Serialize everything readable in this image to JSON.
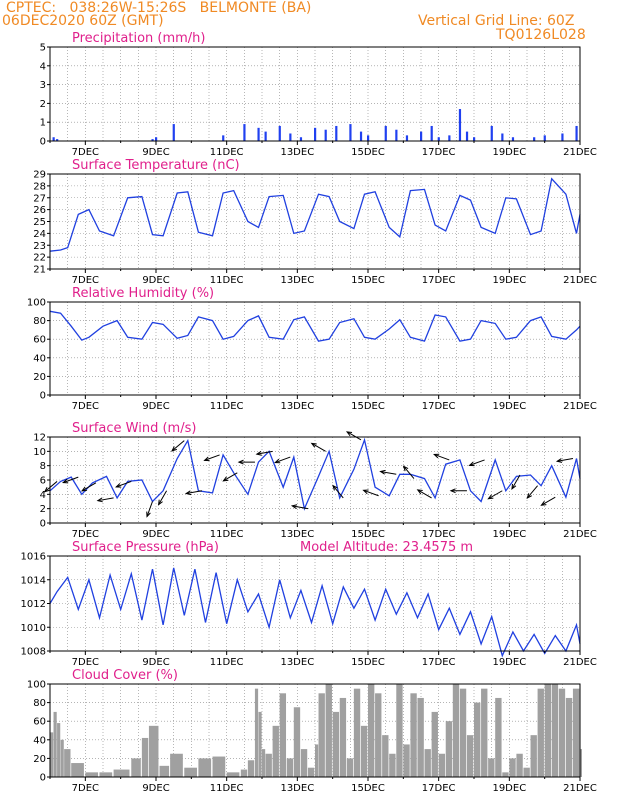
{
  "header": {
    "location_line": "CPTEC:   038:26W-15:26S   BELMONTE (BA)",
    "date_line": "06DEC2020 60Z (GMT)",
    "grid_line": "Vertical Grid Line: 60Z",
    "code_line": "TQ0126L028"
  },
  "colors": {
    "header": "#f08a24",
    "titles": "#e0208c",
    "line": "#2040e0",
    "precip": "#2040f0",
    "cloud": "#a0a0a0",
    "wind_arrow": "#000000"
  },
  "chart_data": [
    {
      "type": "bar",
      "title": "Precipitation (mm/h)",
      "ylim": [
        0,
        5
      ],
      "yticks": [
        0,
        1,
        2,
        3,
        4,
        5
      ],
      "x_range_days": [
        6,
        21
      ],
      "x_labels": [
        "7DEC",
        "9DEC",
        "11DEC",
        "13DEC",
        "15DEC",
        "17DEC",
        "19DEC",
        "21DEC"
      ],
      "grid": "dotted",
      "x": [
        6.1,
        6.2,
        8.9,
        9.0,
        9.5,
        10.9,
        11.5,
        11.9,
        12.1,
        12.5,
        12.8,
        13.1,
        13.5,
        13.8,
        14.1,
        14.5,
        14.8,
        15.0,
        15.5,
        15.8,
        16.1,
        16.5,
        16.8,
        17.0,
        17.3,
        17.6,
        17.8,
        18.0,
        18.5,
        18.8,
        19.1,
        19.7,
        20.0,
        20.5,
        20.9
      ],
      "values": [
        0.2,
        0.1,
        0.1,
        0.2,
        0.9,
        0.3,
        0.9,
        0.7,
        0.5,
        0.8,
        0.4,
        0.2,
        0.7,
        0.6,
        0.8,
        0.9,
        0.5,
        0.3,
        0.8,
        0.6,
        0.3,
        0.5,
        0.8,
        0.2,
        0.3,
        1.7,
        0.5,
        0.2,
        0.8,
        0.4,
        0.2,
        0.2,
        0.3,
        0.4,
        0.8
      ]
    },
    {
      "type": "line",
      "title": "Surface Temperature (nC)",
      "ylim": [
        21,
        29
      ],
      "yticks": [
        21,
        22,
        23,
        24,
        25,
        26,
        27,
        28,
        29
      ],
      "x_range_days": [
        6,
        21
      ],
      "x_labels": [
        "7DEC",
        "9DEC",
        "11DEC",
        "13DEC",
        "15DEC",
        "17DEC",
        "19DEC",
        "21DEC"
      ],
      "grid": "dotted",
      "x": [
        6.0,
        6.3,
        6.5,
        6.8,
        7.1,
        7.4,
        7.8,
        8.2,
        8.6,
        8.9,
        9.2,
        9.6,
        9.9,
        10.2,
        10.6,
        10.9,
        11.2,
        11.6,
        11.9,
        12.2,
        12.6,
        12.9,
        13.2,
        13.6,
        13.9,
        14.2,
        14.6,
        14.9,
        15.2,
        15.6,
        15.9,
        16.2,
        16.6,
        16.9,
        17.2,
        17.6,
        17.9,
        18.2,
        18.6,
        18.9,
        19.2,
        19.6,
        19.9,
        20.2,
        20.6,
        20.9,
        21.0
      ],
      "values": [
        22.5,
        22.6,
        22.8,
        25.6,
        26.0,
        24.2,
        23.8,
        27.0,
        27.1,
        23.9,
        23.8,
        27.4,
        27.5,
        24.1,
        23.8,
        27.4,
        27.6,
        25.0,
        24.5,
        27.1,
        27.2,
        24.0,
        24.2,
        27.3,
        27.1,
        25.0,
        24.4,
        27.3,
        27.5,
        24.5,
        23.7,
        27.6,
        27.7,
        24.7,
        24.2,
        27.2,
        26.8,
        24.5,
        24.0,
        27.0,
        26.9,
        23.9,
        24.2,
        28.6,
        27.3,
        24.0,
        25.6
      ]
    },
    {
      "type": "line",
      "title": "Relative Humidity (%)",
      "ylim": [
        0,
        100
      ],
      "yticks": [
        0,
        20,
        40,
        60,
        80,
        100
      ],
      "x_range_days": [
        6,
        21
      ],
      "x_labels": [
        "7DEC",
        "9DEC",
        "11DEC",
        "13DEC",
        "15DEC",
        "17DEC",
        "19DEC",
        "21DEC"
      ],
      "grid": "dotted",
      "x": [
        6.0,
        6.3,
        6.6,
        6.9,
        7.1,
        7.5,
        7.9,
        8.2,
        8.6,
        8.9,
        9.2,
        9.6,
        9.9,
        10.2,
        10.6,
        10.9,
        11.2,
        11.6,
        11.9,
        12.2,
        12.6,
        12.9,
        13.2,
        13.6,
        13.9,
        14.2,
        14.6,
        14.9,
        15.2,
        15.6,
        15.9,
        16.2,
        16.6,
        16.9,
        17.2,
        17.6,
        17.9,
        18.2,
        18.6,
        18.9,
        19.2,
        19.6,
        19.9,
        20.2,
        20.6,
        20.9,
        21.0
      ],
      "values": [
        90,
        88,
        74,
        59,
        62,
        74,
        80,
        62,
        60,
        78,
        76,
        61,
        64,
        84,
        80,
        60,
        63,
        80,
        85,
        62,
        60,
        81,
        84,
        58,
        60,
        78,
        82,
        62,
        60,
        71,
        81,
        62,
        58,
        86,
        84,
        58,
        60,
        80,
        77,
        60,
        62,
        80,
        84,
        63,
        60,
        70,
        74
      ]
    },
    {
      "type": "line",
      "title": "Surface Wind (m/s)",
      "ylim": [
        0,
        12
      ],
      "yticks": [
        0,
        2,
        4,
        6,
        8,
        10,
        12
      ],
      "x_range_days": [
        6,
        21
      ],
      "x_labels": [
        "7DEC",
        "9DEC",
        "11DEC",
        "13DEC",
        "15DEC",
        "17DEC",
        "19DEC",
        "21DEC"
      ],
      "grid": "dotted",
      "x": [
        6.0,
        6.3,
        6.6,
        6.9,
        7.2,
        7.6,
        7.9,
        8.2,
        8.6,
        8.9,
        9.2,
        9.6,
        9.9,
        10.2,
        10.6,
        10.9,
        11.2,
        11.6,
        11.9,
        12.2,
        12.6,
        12.9,
        13.2,
        13.6,
        13.9,
        14.2,
        14.6,
        14.9,
        15.2,
        15.6,
        15.9,
        16.2,
        16.6,
        16.9,
        17.2,
        17.6,
        17.9,
        18.2,
        18.6,
        18.9,
        19.2,
        19.6,
        19.9,
        20.2,
        20.6,
        20.9,
        21.0
      ],
      "values": [
        4.5,
        5.8,
        6.4,
        4.0,
        5.6,
        6.5,
        3.5,
        5.8,
        6.0,
        3.0,
        4.5,
        9.0,
        11.5,
        4.5,
        4.2,
        9.5,
        7.0,
        4.0,
        8.5,
        10.0,
        5.0,
        9.2,
        2.0,
        6.5,
        10.0,
        3.5,
        7.5,
        11.6,
        5.0,
        3.8,
        6.8,
        6.8,
        6.2,
        3.5,
        8.2,
        8.8,
        4.5,
        3.0,
        8.8,
        4.5,
        6.5,
        6.7,
        5.2,
        8.0,
        3.6,
        9.0,
        6.2
      ],
      "vectors": {
        "x": [
          6.2,
          6.8,
          7.3,
          7.8,
          8.3,
          8.9,
          9.3,
          9.8,
          10.3,
          10.8,
          11.3,
          11.8,
          12.3,
          12.8,
          13.3,
          13.8,
          14.3,
          14.8,
          15.3,
          15.8,
          16.3,
          16.8,
          17.3,
          17.8,
          18.3,
          18.8,
          19.3,
          19.8,
          20.3,
          20.8
        ],
        "dir": [
          230,
          250,
          240,
          260,
          250,
          200,
          210,
          230,
          260,
          250,
          240,
          270,
          260,
          250,
          280,
          300,
          320,
          300,
          290,
          280,
          320,
          300,
          290,
          270,
          250,
          240,
          210,
          220,
          240,
          260
        ]
      }
    },
    {
      "type": "line",
      "title": "Surface Pressure (hPa)",
      "annotation": "Model Altitude: 23.4575 m",
      "ylim": [
        1008,
        1016
      ],
      "yticks": [
        1008,
        1010,
        1012,
        1014,
        1016
      ],
      "x_range_days": [
        6,
        21
      ],
      "x_labels": [
        "7DEC",
        "9DEC",
        "11DEC",
        "13DEC",
        "15DEC",
        "17DEC",
        "19DEC",
        "21DEC"
      ],
      "grid": "dotted",
      "x": [
        6.0,
        6.2,
        6.5,
        6.8,
        7.1,
        7.4,
        7.7,
        8.0,
        8.3,
        8.6,
        8.9,
        9.2,
        9.5,
        9.8,
        10.1,
        10.4,
        10.7,
        11.0,
        11.3,
        11.6,
        11.9,
        12.2,
        12.5,
        12.8,
        13.1,
        13.4,
        13.7,
        14.0,
        14.3,
        14.6,
        14.9,
        15.2,
        15.5,
        15.8,
        16.1,
        16.4,
        16.7,
        17.0,
        17.3,
        17.6,
        17.9,
        18.2,
        18.5,
        18.8,
        19.1,
        19.4,
        19.7,
        20.0,
        20.3,
        20.6,
        20.9,
        21.0
      ],
      "values": [
        1012.0,
        1013.0,
        1014.2,
        1011.5,
        1014.0,
        1010.8,
        1014.4,
        1011.5,
        1014.5,
        1010.6,
        1014.9,
        1010.2,
        1015.0,
        1011.0,
        1014.9,
        1010.4,
        1014.6,
        1010.3,
        1014.0,
        1011.3,
        1012.8,
        1010.0,
        1014.0,
        1010.8,
        1013.1,
        1010.4,
        1013.5,
        1010.3,
        1013.4,
        1011.6,
        1013.2,
        1010.6,
        1013.2,
        1011.1,
        1012.9,
        1010.8,
        1012.8,
        1009.8,
        1011.6,
        1009.4,
        1011.3,
        1008.6,
        1010.9,
        1007.6,
        1009.6,
        1008.0,
        1009.4,
        1007.8,
        1009.3,
        1008.0,
        1010.2,
        1008.6
      ]
    },
    {
      "type": "bar",
      "title": "Cloud Cover (%)",
      "ylim": [
        0,
        100
      ],
      "yticks": [
        0,
        20,
        40,
        60,
        80,
        100
      ],
      "x_range_days": [
        6,
        21
      ],
      "x_labels": [
        "7DEC",
        "9DEC",
        "11DEC",
        "13DEC",
        "15DEC",
        "17DEC",
        "19DEC",
        "21DEC"
      ],
      "grid": "dotted",
      "x": [
        6.0,
        6.1,
        6.2,
        6.3,
        6.4,
        6.6,
        7.0,
        7.4,
        7.8,
        8.3,
        8.6,
        8.8,
        9.1,
        9.4,
        9.8,
        10.2,
        10.6,
        11.0,
        11.4,
        11.6,
        11.8,
        11.9,
        12.0,
        12.1,
        12.3,
        12.5,
        12.7,
        12.9,
        13.1,
        13.3,
        13.5,
        13.6,
        13.8,
        14.0,
        14.2,
        14.4,
        14.6,
        14.8,
        15.0,
        15.2,
        15.4,
        15.6,
        15.8,
        16.0,
        16.2,
        16.4,
        16.6,
        16.8,
        17.0,
        17.2,
        17.4,
        17.6,
        17.8,
        18.0,
        18.2,
        18.4,
        18.6,
        18.8,
        19.0,
        19.2,
        19.4,
        19.6,
        19.8,
        20.0,
        20.2,
        20.4,
        20.6,
        20.8,
        21.0
      ],
      "values": [
        48,
        70,
        58,
        40,
        30,
        15,
        5,
        5,
        8,
        20,
        42,
        55,
        12,
        25,
        10,
        20,
        22,
        5,
        8,
        18,
        95,
        70,
        30,
        25,
        55,
        90,
        20,
        75,
        30,
        10,
        35,
        90,
        100,
        70,
        85,
        20,
        95,
        55,
        100,
        90,
        45,
        25,
        100,
        35,
        90,
        85,
        30,
        70,
        25,
        60,
        100,
        95,
        45,
        80,
        95,
        20,
        85,
        5,
        20,
        25,
        10,
        45,
        95,
        100,
        100,
        95,
        85,
        95,
        30
      ]
    }
  ]
}
